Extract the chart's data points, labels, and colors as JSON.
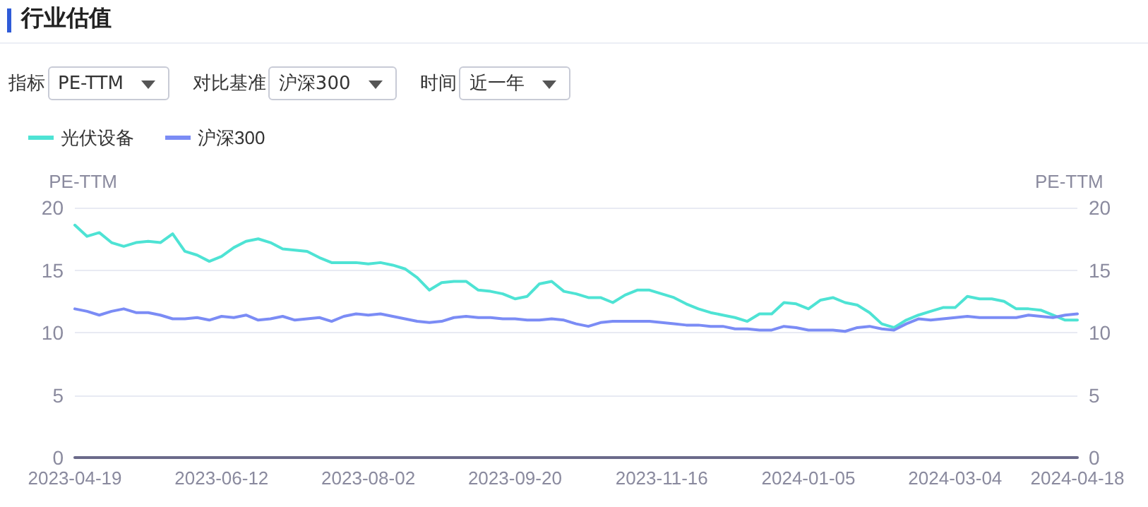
{
  "chart_data": {
    "type": "line",
    "title": "行业估值",
    "annotations": [
      "指标",
      "PE-TTM",
      "对比基准",
      "沪深300",
      "时间",
      "近一年"
    ],
    "ylabel": "PE-TTM",
    "y2label": "PE-TTM",
    "categories": [
      "2023-04-19",
      null,
      null,
      null,
      null,
      null,
      null,
      null,
      null,
      null,
      null,
      null,
      "2023-06-12",
      null,
      null,
      null,
      null,
      null,
      null,
      null,
      null,
      null,
      null,
      null,
      "2023-08-02",
      null,
      null,
      null,
      null,
      null,
      null,
      null,
      null,
      null,
      null,
      null,
      "2023-09-20",
      null,
      null,
      null,
      null,
      null,
      null,
      null,
      null,
      null,
      null,
      null,
      "2023-11-16",
      null,
      null,
      null,
      null,
      null,
      null,
      null,
      null,
      null,
      null,
      null,
      "2024-01-05",
      null,
      null,
      null,
      null,
      null,
      null,
      null,
      null,
      null,
      null,
      null,
      "2024-03-04",
      null,
      null,
      null,
      null,
      null,
      null,
      null,
      null,
      null,
      "2024-04-18"
    ],
    "series": [
      {
        "name": "光伏设备",
        "color": "#4ee3d4",
        "values": [
          18.6,
          17.7,
          18.0,
          17.2,
          16.9,
          17.2,
          17.3,
          17.2,
          17.9,
          16.5,
          16.2,
          15.7,
          16.1,
          16.8,
          17.3,
          17.5,
          17.2,
          16.7,
          16.6,
          16.5,
          16.0,
          15.6,
          15.6,
          15.6,
          15.5,
          15.6,
          15.4,
          15.1,
          14.4,
          13.4,
          14.0,
          14.1,
          14.1,
          13.4,
          13.3,
          13.1,
          12.7,
          12.9,
          13.9,
          14.1,
          13.3,
          13.1,
          12.8,
          12.8,
          12.4,
          13.0,
          13.4,
          13.4,
          13.1,
          12.8,
          12.3,
          11.9,
          11.6,
          11.4,
          11.2,
          10.9,
          11.5,
          11.5,
          12.4,
          12.3,
          11.9,
          12.6,
          12.8,
          12.4,
          12.2,
          11.6,
          10.7,
          10.4,
          11.0,
          11.4,
          11.7,
          12.0,
          12.0,
          12.9,
          12.7,
          12.7,
          12.5,
          11.9,
          11.9,
          11.8,
          11.4,
          11.0,
          11.0
        ]
      },
      {
        "name": "沪深300",
        "color": "#7b8cf5",
        "values": [
          11.9,
          11.7,
          11.4,
          11.7,
          11.9,
          11.6,
          11.6,
          11.4,
          11.1,
          11.1,
          11.2,
          11.0,
          11.3,
          11.2,
          11.4,
          11.0,
          11.1,
          11.3,
          11.0,
          11.1,
          11.2,
          10.9,
          11.3,
          11.5,
          11.4,
          11.5,
          11.3,
          11.1,
          10.9,
          10.8,
          10.9,
          11.2,
          11.3,
          11.2,
          11.2,
          11.1,
          11.1,
          11.0,
          11.0,
          11.1,
          11.0,
          10.7,
          10.5,
          10.8,
          10.9,
          10.9,
          10.9,
          10.9,
          10.8,
          10.7,
          10.6,
          10.6,
          10.5,
          10.5,
          10.3,
          10.3,
          10.2,
          10.2,
          10.5,
          10.4,
          10.2,
          10.2,
          10.2,
          10.1,
          10.4,
          10.5,
          10.3,
          10.2,
          10.7,
          11.1,
          11.0,
          11.1,
          11.2,
          11.3,
          11.2,
          11.2,
          11.2,
          11.2,
          11.4,
          11.3,
          11.2,
          11.4,
          11.5
        ]
      }
    ],
    "ylim": [
      0,
      20
    ],
    "yticks": [
      0,
      5,
      10,
      15,
      20
    ],
    "y2lim": [
      0,
      20
    ],
    "y2ticks": [
      0,
      5,
      10,
      15,
      20
    ],
    "grid": "y",
    "legend": "top left",
    "marker": "none",
    "line_style": "solid"
  }
}
